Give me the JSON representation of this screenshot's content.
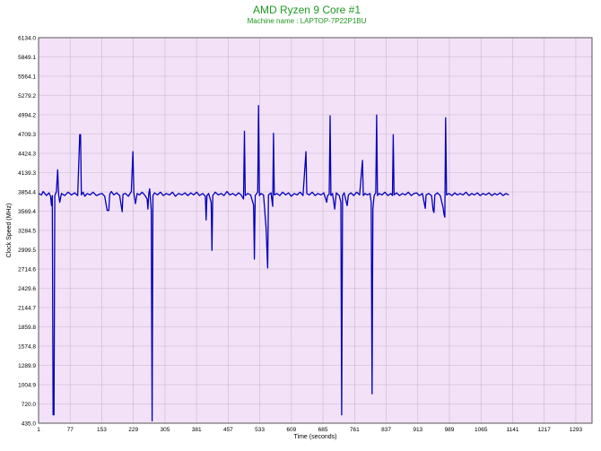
{
  "chart_data": {
    "type": "line",
    "title": "AMD Ryzen 9 Core #1",
    "subtitle": "Machine name : LAPTOP-7P22P1BU",
    "xlabel": "Time (seconds)",
    "ylabel": "Clock Speed (MHz)",
    "xlim": [
      1,
      1332
    ],
    "ylim": [
      435.0,
      6134.0
    ],
    "xticks": [
      "1",
      "77",
      "153",
      "229",
      "305",
      "381",
      "457",
      "533",
      "609",
      "685",
      "761",
      "837",
      "913",
      "989",
      "1065",
      "1141",
      "1217",
      "1293"
    ],
    "yticks": [
      "6134.0",
      "5849.1",
      "5564.1",
      "5279.2",
      "4994.2",
      "4709.3",
      "4424.3",
      "4139.3",
      "3854.4",
      "3569.4",
      "3284.5",
      "2999.5",
      "2714.6",
      "2429.6",
      "2144.7",
      "1859.8",
      "1574.8",
      "1289.9",
      "1004.9",
      "720.0",
      "435.0"
    ],
    "grid": true,
    "colors": {
      "plot_bg": "#f3e1f7",
      "line": "#0000bb",
      "grid": "#c8b8cc",
      "title": "#1e9a1e"
    },
    "series": [
      {
        "baseline": 3820,
        "points": [
          [
            1,
            3830
          ],
          [
            8,
            3810
          ],
          [
            12,
            3860
          ],
          [
            20,
            3800
          ],
          [
            26,
            3840
          ],
          [
            30,
            3790
          ],
          [
            32,
            3650
          ],
          [
            34,
            3800
          ],
          [
            36,
            560
          ],
          [
            38,
            560
          ],
          [
            40,
            3800
          ],
          [
            44,
            3860
          ],
          [
            47,
            4180
          ],
          [
            49,
            3820
          ],
          [
            52,
            3700
          ],
          [
            56,
            3830
          ],
          [
            64,
            3800
          ],
          [
            72,
            3850
          ],
          [
            80,
            3810
          ],
          [
            88,
            3840
          ],
          [
            95,
            3800
          ],
          [
            100,
            4700
          ],
          [
            102,
            4700
          ],
          [
            104,
            3810
          ],
          [
            108,
            3850
          ],
          [
            112,
            3790
          ],
          [
            118,
            3830
          ],
          [
            125,
            3810
          ],
          [
            132,
            3850
          ],
          [
            140,
            3800
          ],
          [
            147,
            3820
          ],
          [
            154,
            3830
          ],
          [
            160,
            3790
          ],
          [
            166,
            3580
          ],
          [
            170,
            3580
          ],
          [
            172,
            3820
          ],
          [
            176,
            3860
          ],
          [
            182,
            3810
          ],
          [
            189,
            3840
          ],
          [
            196,
            3800
          ],
          [
            202,
            3560
          ],
          [
            204,
            3820
          ],
          [
            210,
            3830
          ],
          [
            217,
            3790
          ],
          [
            224,
            3860
          ],
          [
            228,
            4450
          ],
          [
            230,
            3840
          ],
          [
            234,
            3680
          ],
          [
            238,
            3830
          ],
          [
            244,
            3810
          ],
          [
            250,
            3850
          ],
          [
            257,
            3800
          ],
          [
            262,
            3750
          ],
          [
            264,
            3600
          ],
          [
            266,
            3820
          ],
          [
            268,
            3900
          ],
          [
            272,
            3600
          ],
          [
            274,
            470
          ],
          [
            276,
            3800
          ],
          [
            280,
            3840
          ],
          [
            287,
            3810
          ],
          [
            294,
            3850
          ],
          [
            301,
            3800
          ],
          [
            308,
            3830
          ],
          [
            316,
            3810
          ],
          [
            323,
            3850
          ],
          [
            330,
            3790
          ],
          [
            338,
            3830
          ],
          [
            346,
            3810
          ],
          [
            353,
            3840
          ],
          [
            360,
            3800
          ],
          [
            367,
            3840
          ],
          [
            374,
            3810
          ],
          [
            381,
            3850
          ],
          [
            388,
            3800
          ],
          [
            396,
            3830
          ],
          [
            402,
            3790
          ],
          [
            404,
            3440
          ],
          [
            406,
            3800
          ],
          [
            410,
            3830
          ],
          [
            416,
            3700
          ],
          [
            418,
            2990
          ],
          [
            420,
            3800
          ],
          [
            426,
            3850
          ],
          [
            433,
            3810
          ],
          [
            440,
            3830
          ],
          [
            447,
            3800
          ],
          [
            454,
            3860
          ],
          [
            461,
            3810
          ],
          [
            468,
            3830
          ],
          [
            475,
            3800
          ],
          [
            482,
            3840
          ],
          [
            488,
            3810
          ],
          [
            494,
            3750
          ],
          [
            496,
            4750
          ],
          [
            498,
            3800
          ],
          [
            504,
            3830
          ],
          [
            511,
            3810
          ],
          [
            518,
            3660
          ],
          [
            520,
            2860
          ],
          [
            522,
            3800
          ],
          [
            528,
            3850
          ],
          [
            530,
            5130
          ],
          [
            532,
            3800
          ],
          [
            536,
            3830
          ],
          [
            542,
            3810
          ],
          [
            548,
            3330
          ],
          [
            552,
            2730
          ],
          [
            554,
            3810
          ],
          [
            560,
            3840
          ],
          [
            564,
            3640
          ],
          [
            566,
            4720
          ],
          [
            568,
            3810
          ],
          [
            574,
            3830
          ],
          [
            581,
            3800
          ],
          [
            588,
            3850
          ],
          [
            595,
            3810
          ],
          [
            602,
            3840
          ],
          [
            609,
            3790
          ],
          [
            616,
            3830
          ],
          [
            623,
            3810
          ],
          [
            630,
            3850
          ],
          [
            637,
            3800
          ],
          [
            644,
            4450
          ],
          [
            646,
            3830
          ],
          [
            652,
            3810
          ],
          [
            659,
            3850
          ],
          [
            666,
            3800
          ],
          [
            673,
            3830
          ],
          [
            680,
            3810
          ],
          [
            687,
            3840
          ],
          [
            694,
            3700
          ],
          [
            696,
            3800
          ],
          [
            700,
            3820
          ],
          [
            702,
            4980
          ],
          [
            704,
            3800
          ],
          [
            708,
            3830
          ],
          [
            713,
            3600
          ],
          [
            717,
            3840
          ],
          [
            724,
            3800
          ],
          [
            728,
            3700
          ],
          [
            730,
            560
          ],
          [
            732,
            3800
          ],
          [
            736,
            3840
          ],
          [
            743,
            3650
          ],
          [
            746,
            3810
          ],
          [
            752,
            3840
          ],
          [
            759,
            3800
          ],
          [
            766,
            3850
          ],
          [
            773,
            3810
          ],
          [
            780,
            4320
          ],
          [
            782,
            3800
          ],
          [
            786,
            3830
          ],
          [
            792,
            3810
          ],
          [
            798,
            3830
          ],
          [
            801,
            3700
          ],
          [
            803,
            870
          ],
          [
            805,
            3600
          ],
          [
            808,
            3800
          ],
          [
            812,
            3840
          ],
          [
            814,
            4990
          ],
          [
            816,
            3800
          ],
          [
            820,
            3830
          ],
          [
            827,
            3810
          ],
          [
            834,
            3850
          ],
          [
            841,
            3800
          ],
          [
            848,
            3830
          ],
          [
            852,
            3800
          ],
          [
            854,
            4700
          ],
          [
            856,
            3810
          ],
          [
            862,
            3840
          ],
          [
            869,
            3800
          ],
          [
            876,
            3830
          ],
          [
            883,
            3810
          ],
          [
            890,
            3850
          ],
          [
            897,
            3800
          ],
          [
            904,
            3830
          ],
          [
            910,
            3840
          ],
          [
            917,
            3800
          ],
          [
            924,
            3830
          ],
          [
            931,
            3610
          ],
          [
            933,
            3810
          ],
          [
            939,
            3830
          ],
          [
            946,
            3800
          ],
          [
            950,
            3580
          ],
          [
            952,
            3550
          ],
          [
            954,
            3810
          ],
          [
            960,
            3840
          ],
          [
            967,
            3800
          ],
          [
            974,
            3620
          ],
          [
            976,
            3520
          ],
          [
            978,
            3480
          ],
          [
            980,
            4950
          ],
          [
            982,
            3810
          ],
          [
            988,
            3830
          ],
          [
            995,
            3800
          ],
          [
            1002,
            3840
          ],
          [
            1008,
            3810
          ],
          [
            1015,
            3830
          ],
          [
            1022,
            3810
          ],
          [
            1029,
            3850
          ],
          [
            1036,
            3800
          ],
          [
            1043,
            3830
          ],
          [
            1049,
            3810
          ],
          [
            1056,
            3840
          ],
          [
            1063,
            3800
          ],
          [
            1070,
            3830
          ],
          [
            1077,
            3810
          ],
          [
            1084,
            3840
          ],
          [
            1091,
            3800
          ],
          [
            1098,
            3830
          ],
          [
            1104,
            3810
          ],
          [
            1111,
            3840
          ],
          [
            1118,
            3800
          ],
          [
            1125,
            3830
          ],
          [
            1132,
            3810
          ]
        ]
      }
    ]
  }
}
